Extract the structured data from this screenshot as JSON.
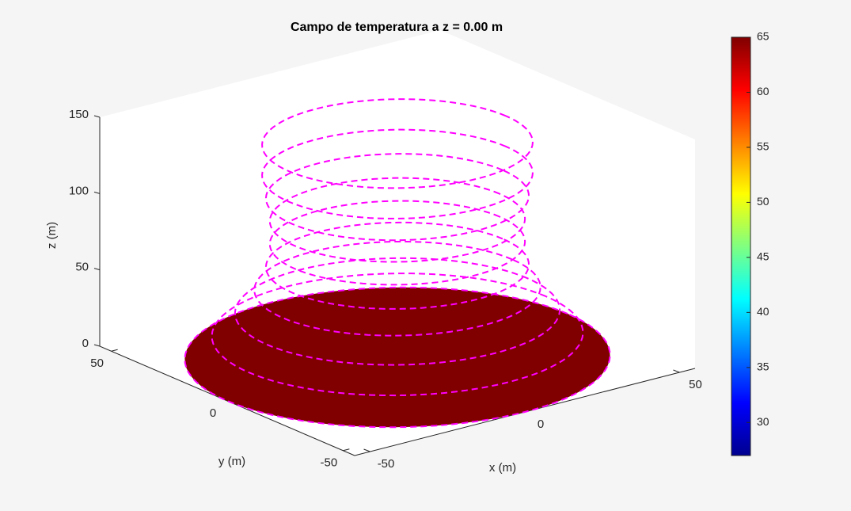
{
  "chart_data": {
    "type": "surface3d",
    "title": "Campo de temperatura a z = 0.00 m",
    "xlabel": "x (m)",
    "ylabel": "y (m)",
    "zlabel": "z (m)",
    "xlim": [
      -55,
      55
    ],
    "ylim": [
      -55,
      55
    ],
    "zlim": [
      0,
      150
    ],
    "xticks": [
      -50,
      0,
      50
    ],
    "yticks": [
      -50,
      0,
      50
    ],
    "zticks": [
      0,
      50,
      100,
      150
    ],
    "disk": {
      "z": 0,
      "r": 55,
      "value": 65,
      "color": "#800000"
    },
    "rings": {
      "color": "#ff00ff",
      "z": [
        0,
        15,
        30,
        45,
        60,
        75,
        90,
        105,
        120,
        140
      ],
      "r": [
        55,
        48,
        42,
        37,
        34,
        33,
        33,
        34,
        35,
        35
      ]
    },
    "colorbar": {
      "clim": [
        27,
        65
      ],
      "ticks": [
        30,
        35,
        40,
        45,
        50,
        55,
        60,
        65
      ]
    }
  }
}
